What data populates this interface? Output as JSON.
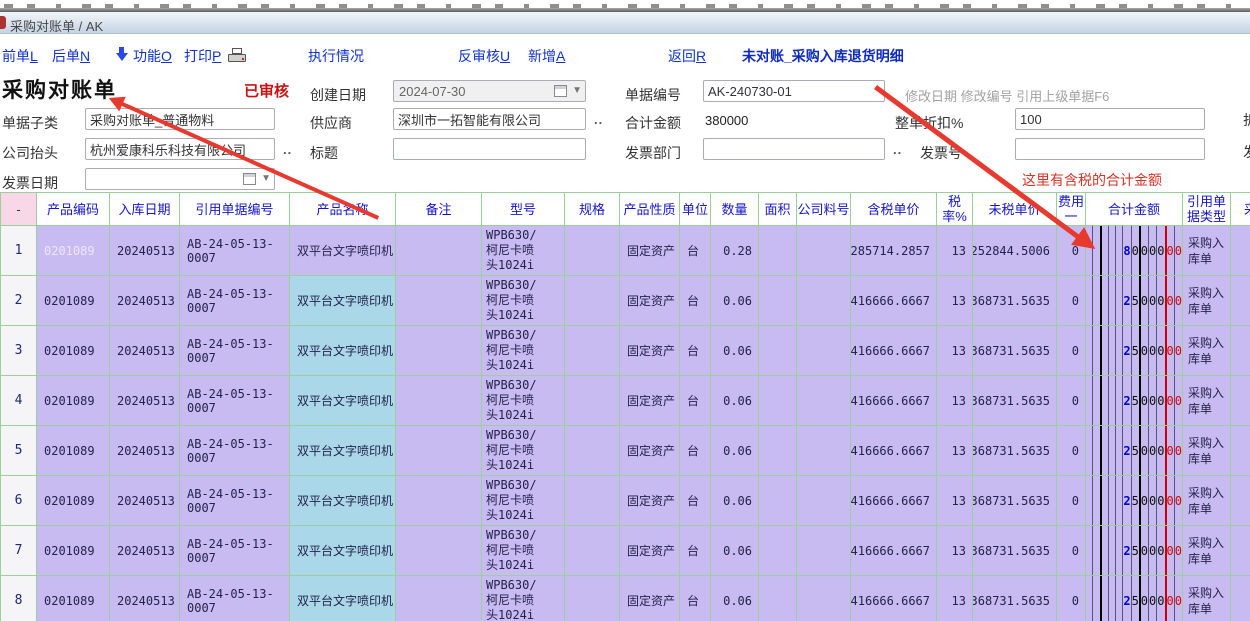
{
  "breadcrumb": {
    "text": "采购对账单 / AK"
  },
  "toolbar": {
    "items": [
      {
        "t": "前单",
        "m": "L"
      },
      {
        "t": "后单",
        "m": "N"
      },
      {
        "t": "功能",
        "m": "O"
      },
      {
        "t": "打印",
        "m": "P"
      },
      {
        "t": "执行情况",
        "m": ""
      },
      {
        "t": "反审核",
        "m": "U"
      },
      {
        "t": "新增",
        "m": "A"
      },
      {
        "t": "返回",
        "m": "R"
      }
    ],
    "report_link": "未对账_采购入库退货明细"
  },
  "header": {
    "title": "采购对账单",
    "approved_stamp": "已审核",
    "meta_text": "修改日期  修改编号  引用上级单据F6"
  },
  "form": {
    "created_label": "创建日期",
    "created_value": "2024-07-30",
    "docno_label": "单据编号",
    "docno_value": "AK-240730-01",
    "subtype_label": "单据子类",
    "subtype_value": "采购对账单_普通物料",
    "supplier_label": "供应商",
    "supplier_value": "深圳市一拓智能有限公司",
    "total_label": "合计金额",
    "total_value": "380000",
    "discount_label": "整单折扣%",
    "discount_value": "100",
    "company_label": "公司抬头",
    "company_value": "杭州爱康科乐科技有限公司",
    "title_label": "标题",
    "title_value": "",
    "invoice_dept_label": "发票部门",
    "invoice_dept_value": "",
    "invoice_no_label": "发票号",
    "invoice_no_value": "",
    "invoice_date_label": "发票日期",
    "invoice_date_value": "",
    "dots": "..",
    "edge_partial_1": "折",
    "edge_partial_2": "发"
  },
  "annotations": {
    "tax_note": "这里有含税的合计金额",
    "arrow_color": "#e7392e"
  },
  "table": {
    "headers": [
      "-",
      "产品编码",
      "入库日期",
      "引用单据编号",
      "产品名称",
      "备注",
      "型号",
      "规格",
      "产品性质",
      "单位",
      "数量",
      "面积",
      "公司料号",
      "含税单价",
      "税率%",
      "未税单价",
      "费用\n一",
      "合计金额",
      "引用单\n据类型",
      "采"
    ],
    "colors": {
      "cell_purple": "#c8bbf2",
      "cell_cyan": "#aad8e8",
      "grid_green": "#9ccf9c",
      "header_blue": "#1515cc",
      "ledger_red": "#e00000",
      "ledger_blue": "#0000e0"
    },
    "rows": [
      {
        "no": "1",
        "code": "0201089",
        "code_highlight": true,
        "in_date": "20240513",
        "ref_no": "AB-24-05-13-0007",
        "name": "双平台文字喷印机",
        "name_highlight": false,
        "remark": "",
        "model": "WPB630/\n柯尼卡喷\n头1024i",
        "spec": "",
        "nature": "固定资产",
        "unit": "台",
        "qty": "0.28",
        "area": "",
        "company_pn": "",
        "tax_price": "285714.2857",
        "tax_rate": "13",
        "untax_price": "252844.5006",
        "fee": "0",
        "amount": "80000.00",
        "ref_type": "采购入库单",
        "extra": ""
      },
      {
        "no": "2",
        "code": "0201089",
        "code_highlight": false,
        "in_date": "20240513",
        "ref_no": "AB-24-05-13-0007",
        "name": "双平台文字喷印机",
        "name_highlight": true,
        "remark": "",
        "model": "WPB630/\n柯尼卡喷\n头1024i",
        "spec": "",
        "nature": "固定资产",
        "unit": "台",
        "qty": "0.06",
        "area": "",
        "company_pn": "",
        "tax_price": "416666.6667",
        "tax_rate": "13",
        "untax_price": "368731.5635",
        "fee": "0",
        "amount": "25000.00",
        "ref_type": "采购入库单",
        "extra": ""
      },
      {
        "no": "3",
        "code": "0201089",
        "code_highlight": false,
        "in_date": "20240513",
        "ref_no": "AB-24-05-13-0007",
        "name": "双平台文字喷印机",
        "name_highlight": true,
        "remark": "",
        "model": "WPB630/\n柯尼卡喷\n头1024i",
        "spec": "",
        "nature": "固定资产",
        "unit": "台",
        "qty": "0.06",
        "area": "",
        "company_pn": "",
        "tax_price": "416666.6667",
        "tax_rate": "13",
        "untax_price": "368731.5635",
        "fee": "0",
        "amount": "25000.00",
        "ref_type": "采购入库单",
        "extra": ""
      },
      {
        "no": "4",
        "code": "0201089",
        "code_highlight": false,
        "in_date": "20240513",
        "ref_no": "AB-24-05-13-0007",
        "name": "双平台文字喷印机",
        "name_highlight": true,
        "remark": "",
        "model": "WPB630/\n柯尼卡喷\n头1024i",
        "spec": "",
        "nature": "固定资产",
        "unit": "台",
        "qty": "0.06",
        "area": "",
        "company_pn": "",
        "tax_price": "416666.6667",
        "tax_rate": "13",
        "untax_price": "368731.5635",
        "fee": "0",
        "amount": "25000.00",
        "ref_type": "采购入库单",
        "extra": ""
      },
      {
        "no": "5",
        "code": "0201089",
        "code_highlight": false,
        "in_date": "20240513",
        "ref_no": "AB-24-05-13-0007",
        "name": "双平台文字喷印机",
        "name_highlight": true,
        "remark": "",
        "model": "WPB630/\n柯尼卡喷\n头1024i",
        "spec": "",
        "nature": "固定资产",
        "unit": "台",
        "qty": "0.06",
        "area": "",
        "company_pn": "",
        "tax_price": "416666.6667",
        "tax_rate": "13",
        "untax_price": "368731.5635",
        "fee": "0",
        "amount": "25000.00",
        "ref_type": "采购入库单",
        "extra": ""
      },
      {
        "no": "6",
        "code": "0201089",
        "code_highlight": false,
        "in_date": "20240513",
        "ref_no": "AB-24-05-13-0007",
        "name": "双平台文字喷印机",
        "name_highlight": true,
        "remark": "",
        "model": "WPB630/\n柯尼卡喷\n头1024i",
        "spec": "",
        "nature": "固定资产",
        "unit": "台",
        "qty": "0.06",
        "area": "",
        "company_pn": "",
        "tax_price": "416666.6667",
        "tax_rate": "13",
        "untax_price": "368731.5635",
        "fee": "0",
        "amount": "25000.00",
        "ref_type": "采购入库单",
        "extra": ""
      },
      {
        "no": "7",
        "code": "0201089",
        "code_highlight": false,
        "in_date": "20240513",
        "ref_no": "AB-24-05-13-0007",
        "name": "双平台文字喷印机",
        "name_highlight": true,
        "remark": "",
        "model": "WPB630/\n柯尼卡喷\n头1024i",
        "spec": "",
        "nature": "固定资产",
        "unit": "台",
        "qty": "0.06",
        "area": "",
        "company_pn": "",
        "tax_price": "416666.6667",
        "tax_rate": "13",
        "untax_price": "368731.5635",
        "fee": "0",
        "amount": "25000.00",
        "ref_type": "采购入库单",
        "extra": ""
      },
      {
        "no": "8",
        "code": "0201089",
        "code_highlight": false,
        "in_date": "20240513",
        "ref_no": "AB-24-05-13-0007",
        "name": "双平台文字喷印机",
        "name_highlight": true,
        "remark": "",
        "model": "WPB630/\n柯尼卡喷\n头1024i",
        "spec": "",
        "nature": "固定资产",
        "unit": "台",
        "qty": "0.06",
        "area": "",
        "company_pn": "",
        "tax_price": "416666.6667",
        "tax_rate": "13",
        "untax_price": "368731.5635",
        "fee": "0",
        "amount": "25000.00",
        "ref_type": "采购入库单",
        "extra": ""
      }
    ]
  }
}
